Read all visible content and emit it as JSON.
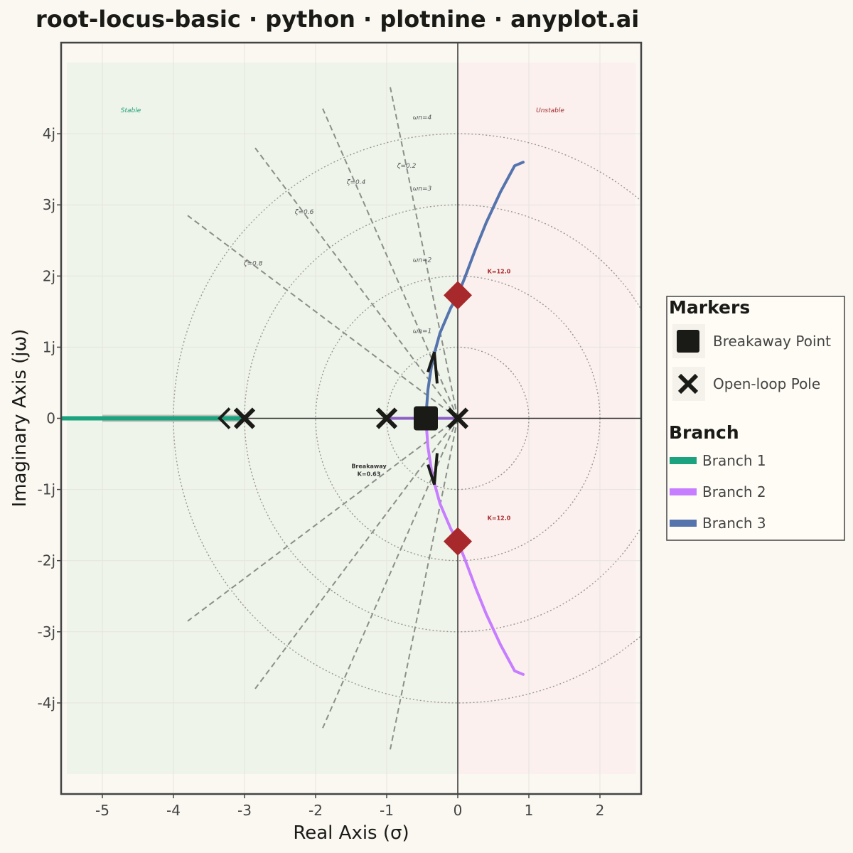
{
  "chart_data": {
    "type": "line",
    "title": "root-locus-basic · python · plotnine · anyplot.ai",
    "xlabel": "Real Axis (σ)",
    "ylabel": "Imaginary Axis (jω)",
    "xlim": [
      -5.58,
      2.58
    ],
    "ylim": [
      -5.28,
      5.28
    ],
    "x_ticks": [
      -5,
      -4,
      -3,
      -2,
      -1,
      0,
      1,
      2
    ],
    "x_tick_labels": [
      "-5",
      "-4",
      "-3",
      "-2",
      "-1",
      "0",
      "1",
      "2"
    ],
    "y_ticks": [
      -4,
      -3,
      -2,
      -1,
      0,
      1,
      2,
      3,
      4
    ],
    "y_tick_labels": [
      "-4j",
      "-3j",
      "-2j",
      "-1j",
      "0",
      "1j",
      "2j",
      "3j",
      "4j"
    ],
    "grid": true,
    "regions": [
      {
        "label": "Stable",
        "x": [
          -5.5,
          0
        ],
        "color": "#EEF4EA",
        "label_color": "#1E9E78",
        "label_x": -4.6,
        "label_y": 4.3
      },
      {
        "label": "Unstable",
        "x": [
          0,
          2.5
        ],
        "color": "#FBF0EE",
        "label_color": "#A0282C",
        "label_x": 1.3,
        "label_y": 4.3
      }
    ],
    "region_ylim": [
      -5.0,
      5.0
    ],
    "omega_n_circles": [
      {
        "r": 1,
        "label": "ωn=1"
      },
      {
        "r": 2,
        "label": "ωn=2"
      },
      {
        "r": 3,
        "label": "ωn=3"
      },
      {
        "r": 4,
        "label": "ωn=4"
      }
    ],
    "zeta_lines": [
      {
        "zeta": 0.2,
        "label": "ζ=0.2"
      },
      {
        "zeta": 0.4,
        "label": "ζ=0.4"
      },
      {
        "zeta": 0.6,
        "label": "ζ=0.6"
      },
      {
        "zeta": 0.8,
        "label": "ζ=0.8"
      }
    ],
    "zeta_radius": 4.75,
    "series": [
      {
        "name": "Branch 1",
        "color": "#1BA27E",
        "points": [
          [
            -3.0,
            0
          ],
          [
            -3.4,
            0
          ],
          [
            -4.0,
            0
          ],
          [
            -4.6,
            0
          ],
          [
            -5.0,
            0
          ],
          [
            -5.58,
            0
          ]
        ]
      },
      {
        "name": "Branch 2",
        "color": "#C77DFF",
        "points": [
          [
            -0.45,
            0
          ],
          [
            -0.42,
            -0.4
          ],
          [
            -0.36,
            -0.8
          ],
          [
            -0.25,
            -1.2
          ],
          [
            -0.1,
            -1.55
          ],
          [
            0.0,
            -1.73
          ],
          [
            0.1,
            -1.98
          ],
          [
            0.25,
            -2.38
          ],
          [
            0.4,
            -2.75
          ],
          [
            0.6,
            -3.18
          ],
          [
            0.8,
            -3.55
          ],
          [
            0.92,
            -3.6
          ]
        ]
      },
      {
        "name": "Branch 3",
        "color": "#5573AD",
        "points": [
          [
            -0.45,
            0
          ],
          [
            -0.42,
            0.4
          ],
          [
            -0.36,
            0.8
          ],
          [
            -0.25,
            1.2
          ],
          [
            -0.1,
            1.55
          ],
          [
            0.0,
            1.73
          ],
          [
            0.1,
            1.98
          ],
          [
            0.25,
            2.38
          ],
          [
            0.4,
            2.75
          ],
          [
            0.6,
            3.18
          ],
          [
            0.8,
            3.55
          ],
          [
            0.92,
            3.6
          ]
        ]
      }
    ],
    "markers": {
      "open_loop_poles": [
        [
          0,
          0
        ],
        [
          -1,
          0
        ],
        [
          -3,
          0
        ]
      ],
      "breakaway": {
        "x": -0.45,
        "y": 0,
        "label_line1": "Breakaway",
        "label_line2": "K=0.63",
        "label_x": -1.25,
        "label_y": -0.7
      },
      "crossings": [
        {
          "x": 0,
          "y": 1.73,
          "label": "K=12.0",
          "label_x": 0.58,
          "label_y": 2.04
        },
        {
          "x": 0,
          "y": -1.73,
          "label": "K=12.0",
          "label_x": 0.58,
          "label_y": -1.43
        }
      ],
      "arrows": [
        {
          "x": -0.33,
          "y": 0.79,
          "dir": "up"
        },
        {
          "x": -0.33,
          "y": -0.79,
          "dir": "down"
        },
        {
          "x": -3.35,
          "y": 0,
          "dir": "left"
        }
      ]
    },
    "legend": {
      "placement": "right",
      "markers_title": "Markers",
      "markers_items": [
        {
          "label": "Breakaway Point",
          "symbol": "square"
        },
        {
          "label": "Open-loop Pole",
          "symbol": "x"
        }
      ],
      "branch_title": "Branch",
      "branch_items": [
        "Branch 1",
        "Branch 2",
        "Branch 3"
      ]
    },
    "colors": {
      "background": "#FAF8F1",
      "crossing": "#A8292B",
      "marker": "#1A1A17",
      "guide": "#8A8F88",
      "axis_frame": "#444444"
    }
  }
}
